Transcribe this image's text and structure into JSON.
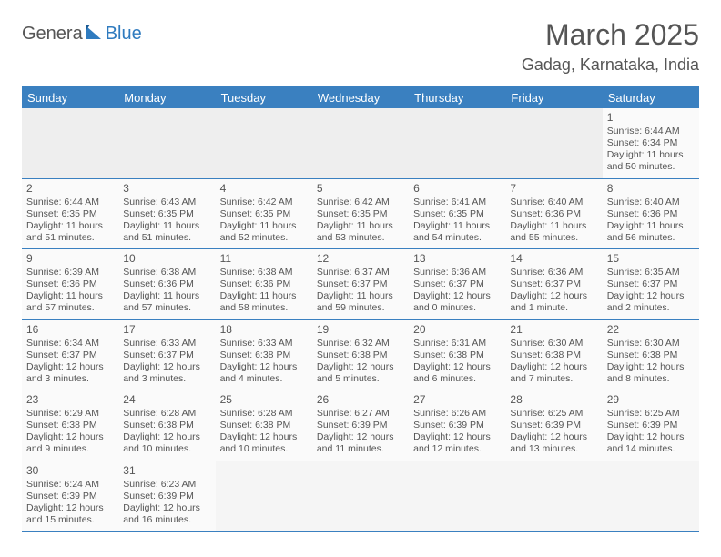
{
  "logo": {
    "text1": "Genera",
    "text2": "Blue"
  },
  "title": "March 2025",
  "location": "Gadag, Karnataka, India",
  "header_color": "#3a80c0",
  "border_color": "#3a80c0",
  "day_names": [
    "Sunday",
    "Monday",
    "Tuesday",
    "Wednesday",
    "Thursday",
    "Friday",
    "Saturday"
  ],
  "weeks": [
    [
      null,
      null,
      null,
      null,
      null,
      null,
      {
        "n": "1",
        "sr": "Sunrise: 6:44 AM",
        "ss": "Sunset: 6:34 PM",
        "dl": "Daylight: 11 hours and 50 minutes."
      }
    ],
    [
      {
        "n": "2",
        "sr": "Sunrise: 6:44 AM",
        "ss": "Sunset: 6:35 PM",
        "dl": "Daylight: 11 hours and 51 minutes."
      },
      {
        "n": "3",
        "sr": "Sunrise: 6:43 AM",
        "ss": "Sunset: 6:35 PM",
        "dl": "Daylight: 11 hours and 51 minutes."
      },
      {
        "n": "4",
        "sr": "Sunrise: 6:42 AM",
        "ss": "Sunset: 6:35 PM",
        "dl": "Daylight: 11 hours and 52 minutes."
      },
      {
        "n": "5",
        "sr": "Sunrise: 6:42 AM",
        "ss": "Sunset: 6:35 PM",
        "dl": "Daylight: 11 hours and 53 minutes."
      },
      {
        "n": "6",
        "sr": "Sunrise: 6:41 AM",
        "ss": "Sunset: 6:35 PM",
        "dl": "Daylight: 11 hours and 54 minutes."
      },
      {
        "n": "7",
        "sr": "Sunrise: 6:40 AM",
        "ss": "Sunset: 6:36 PM",
        "dl": "Daylight: 11 hours and 55 minutes."
      },
      {
        "n": "8",
        "sr": "Sunrise: 6:40 AM",
        "ss": "Sunset: 6:36 PM",
        "dl": "Daylight: 11 hours and 56 minutes."
      }
    ],
    [
      {
        "n": "9",
        "sr": "Sunrise: 6:39 AM",
        "ss": "Sunset: 6:36 PM",
        "dl": "Daylight: 11 hours and 57 minutes."
      },
      {
        "n": "10",
        "sr": "Sunrise: 6:38 AM",
        "ss": "Sunset: 6:36 PM",
        "dl": "Daylight: 11 hours and 57 minutes."
      },
      {
        "n": "11",
        "sr": "Sunrise: 6:38 AM",
        "ss": "Sunset: 6:36 PM",
        "dl": "Daylight: 11 hours and 58 minutes."
      },
      {
        "n": "12",
        "sr": "Sunrise: 6:37 AM",
        "ss": "Sunset: 6:37 PM",
        "dl": "Daylight: 11 hours and 59 minutes."
      },
      {
        "n": "13",
        "sr": "Sunrise: 6:36 AM",
        "ss": "Sunset: 6:37 PM",
        "dl": "Daylight: 12 hours and 0 minutes."
      },
      {
        "n": "14",
        "sr": "Sunrise: 6:36 AM",
        "ss": "Sunset: 6:37 PM",
        "dl": "Daylight: 12 hours and 1 minute."
      },
      {
        "n": "15",
        "sr": "Sunrise: 6:35 AM",
        "ss": "Sunset: 6:37 PM",
        "dl": "Daylight: 12 hours and 2 minutes."
      }
    ],
    [
      {
        "n": "16",
        "sr": "Sunrise: 6:34 AM",
        "ss": "Sunset: 6:37 PM",
        "dl": "Daylight: 12 hours and 3 minutes."
      },
      {
        "n": "17",
        "sr": "Sunrise: 6:33 AM",
        "ss": "Sunset: 6:37 PM",
        "dl": "Daylight: 12 hours and 3 minutes."
      },
      {
        "n": "18",
        "sr": "Sunrise: 6:33 AM",
        "ss": "Sunset: 6:38 PM",
        "dl": "Daylight: 12 hours and 4 minutes."
      },
      {
        "n": "19",
        "sr": "Sunrise: 6:32 AM",
        "ss": "Sunset: 6:38 PM",
        "dl": "Daylight: 12 hours and 5 minutes."
      },
      {
        "n": "20",
        "sr": "Sunrise: 6:31 AM",
        "ss": "Sunset: 6:38 PM",
        "dl": "Daylight: 12 hours and 6 minutes."
      },
      {
        "n": "21",
        "sr": "Sunrise: 6:30 AM",
        "ss": "Sunset: 6:38 PM",
        "dl": "Daylight: 12 hours and 7 minutes."
      },
      {
        "n": "22",
        "sr": "Sunrise: 6:30 AM",
        "ss": "Sunset: 6:38 PM",
        "dl": "Daylight: 12 hours and 8 minutes."
      }
    ],
    [
      {
        "n": "23",
        "sr": "Sunrise: 6:29 AM",
        "ss": "Sunset: 6:38 PM",
        "dl": "Daylight: 12 hours and 9 minutes."
      },
      {
        "n": "24",
        "sr": "Sunrise: 6:28 AM",
        "ss": "Sunset: 6:38 PM",
        "dl": "Daylight: 12 hours and 10 minutes."
      },
      {
        "n": "25",
        "sr": "Sunrise: 6:28 AM",
        "ss": "Sunset: 6:38 PM",
        "dl": "Daylight: 12 hours and 10 minutes."
      },
      {
        "n": "26",
        "sr": "Sunrise: 6:27 AM",
        "ss": "Sunset: 6:39 PM",
        "dl": "Daylight: 12 hours and 11 minutes."
      },
      {
        "n": "27",
        "sr": "Sunrise: 6:26 AM",
        "ss": "Sunset: 6:39 PM",
        "dl": "Daylight: 12 hours and 12 minutes."
      },
      {
        "n": "28",
        "sr": "Sunrise: 6:25 AM",
        "ss": "Sunset: 6:39 PM",
        "dl": "Daylight: 12 hours and 13 minutes."
      },
      {
        "n": "29",
        "sr": "Sunrise: 6:25 AM",
        "ss": "Sunset: 6:39 PM",
        "dl": "Daylight: 12 hours and 14 minutes."
      }
    ],
    [
      {
        "n": "30",
        "sr": "Sunrise: 6:24 AM",
        "ss": "Sunset: 6:39 PM",
        "dl": "Daylight: 12 hours and 15 minutes."
      },
      {
        "n": "31",
        "sr": "Sunrise: 6:23 AM",
        "ss": "Sunset: 6:39 PM",
        "dl": "Daylight: 12 hours and 16 minutes."
      },
      null,
      null,
      null,
      null,
      null
    ]
  ]
}
